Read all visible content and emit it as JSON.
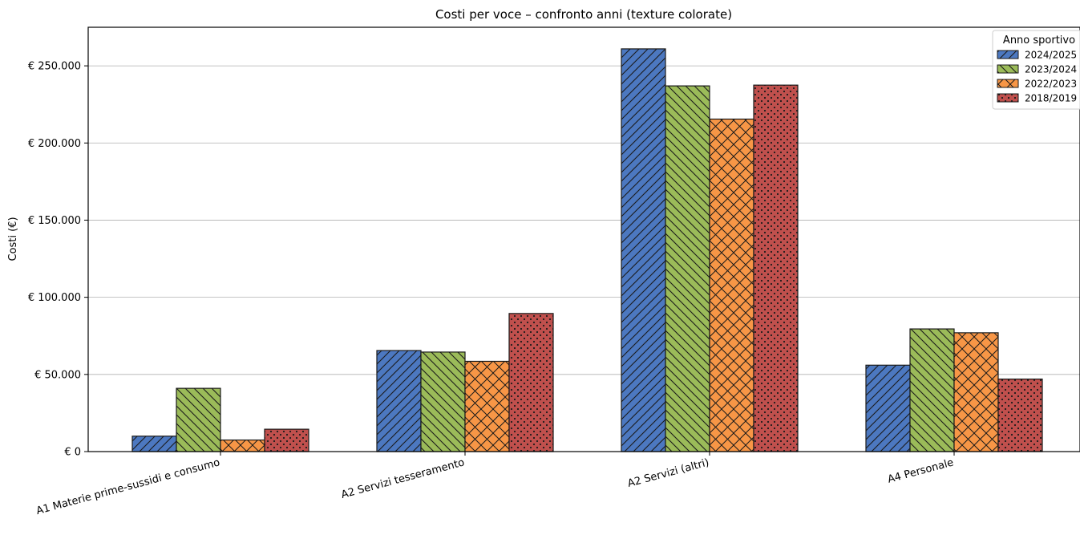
{
  "chart_data": {
    "type": "bar",
    "title": "Costi per voce – confronto anni (texture colorate)",
    "xlabel": "",
    "ylabel": "Costi (€)",
    "ylim": [
      0,
      275000
    ],
    "grid": "y",
    "yticks": [
      0,
      50000,
      100000,
      150000,
      200000,
      250000
    ],
    "ytick_labels": [
      "€ 0",
      "€ 50.000",
      "€ 100.000",
      "€ 150.000",
      "€ 200.000",
      "€ 250.000"
    ],
    "categories": [
      "A1 Materie prime-sussidi e consumo",
      "A2 Servizi tesseramento",
      "A2 Servizi (altri)",
      "A4 Personale"
    ],
    "legend": {
      "title": "Anno sportivo",
      "placement": "top-right"
    },
    "series": [
      {
        "name": "2024/2025",
        "color": "#4c78c0",
        "hatch": "forward-diagonal",
        "values": [
          10000,
          65500,
          261000,
          56000
        ]
      },
      {
        "name": "2023/2024",
        "color": "#9bbb59",
        "hatch": "back-diagonal",
        "values": [
          41000,
          64500,
          237000,
          79500
        ]
      },
      {
        "name": "2022/2023",
        "color": "#f79646",
        "hatch": "crosshatch",
        "values": [
          7500,
          58500,
          215500,
          77000
        ]
      },
      {
        "name": "2018/2019",
        "color": "#c0504d",
        "hatch": "dots",
        "values": [
          14500,
          89500,
          237500,
          47000
        ]
      }
    ]
  }
}
